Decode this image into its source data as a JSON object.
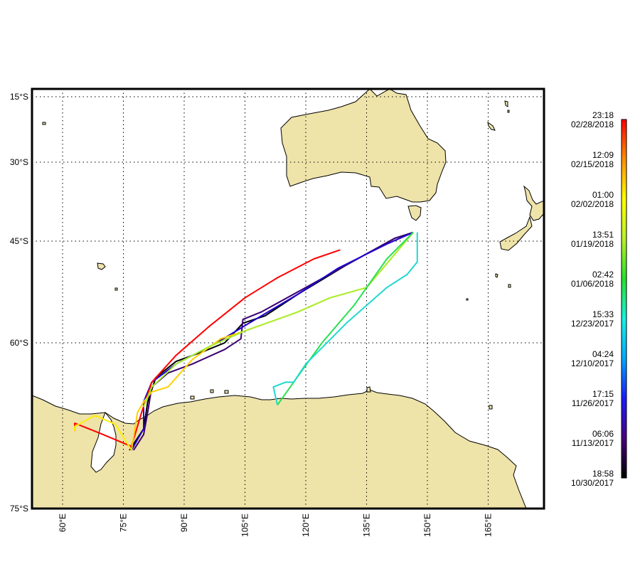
{
  "map": {
    "lat_labels": [
      "15°S",
      "30°S",
      "45°S",
      "60°S",
      "75°S"
    ],
    "lon_labels": [
      "60°E",
      "75°E",
      "90°E",
      "105°E",
      "120°E",
      "135°E",
      "150°E",
      "165°E"
    ],
    "land_color": "#EEE3A9",
    "coast_color": "#000000",
    "grid_style": "dotted"
  },
  "colorbar": {
    "ticks": [
      {
        "time": "23:18",
        "date": "02/28/2018"
      },
      {
        "time": "12:09",
        "date": "02/15/2018"
      },
      {
        "time": "01:00",
        "date": "02/02/2018"
      },
      {
        "time": "13:51",
        "date": "01/19/2018"
      },
      {
        "time": "02:42",
        "date": "01/06/2018"
      },
      {
        "time": "15:33",
        "date": "12/23/2017"
      },
      {
        "time": "04:24",
        "date": "12/10/2017"
      },
      {
        "time": "17:15",
        "date": "11/26/2017"
      },
      {
        "time": "06:06",
        "date": "11/13/2017"
      },
      {
        "time": "18:58",
        "date": "10/30/2017"
      }
    ],
    "colormap": [
      "#000000",
      "#4a0080",
      "#1b1bff",
      "#00a8ff",
      "#18f0e0",
      "#28e028",
      "#b8f028",
      "#ffff00",
      "#ff9000",
      "#ff0000"
    ]
  },
  "tracks": [
    {
      "color": "#000000",
      "path": [
        [
          146.5,
          -43.5
        ],
        [
          142,
          -44.5
        ],
        [
          130,
          -49
        ],
        [
          118,
          -53.5
        ],
        [
          110,
          -56.5
        ],
        [
          104.5,
          -57.5
        ],
        [
          100,
          -60
        ],
        [
          95,
          -61
        ],
        [
          88,
          -62.2
        ],
        [
          83,
          -64
        ],
        [
          81,
          -66.5
        ],
        [
          80,
          -69
        ],
        [
          76.5,
          -70.8
        ]
      ]
    },
    {
      "color": "#3a0070",
      "path": [
        [
          146.5,
          -43.5
        ],
        [
          142,
          -44.5
        ],
        [
          130,
          -49
        ],
        [
          120,
          -52.5
        ],
        [
          109,
          -56
        ],
        [
          104.5,
          -57
        ],
        [
          104,
          -59.5
        ],
        [
          100,
          -60.8
        ],
        [
          92,
          -62.5
        ],
        [
          86,
          -63.5
        ],
        [
          82,
          -65
        ],
        [
          81,
          -67.5
        ],
        [
          80,
          -69.5
        ],
        [
          77.5,
          -70.8
        ]
      ]
    },
    {
      "color": "#2000d0",
      "path": [
        [
          146.5,
          -43.5
        ],
        [
          140,
          -45.5
        ],
        [
          128,
          -49.5
        ],
        [
          118,
          -53.5
        ],
        [
          106,
          -57.5
        ],
        [
          98,
          -60
        ],
        [
          88,
          -62.5
        ],
        [
          82,
          -64.5
        ],
        [
          80,
          -66.5
        ],
        [
          80,
          -69
        ],
        [
          77,
          -70.8
        ]
      ]
    },
    {
      "color": "#ff0000",
      "path": [
        [
          128.5,
          -46.5
        ],
        [
          122,
          -48
        ],
        [
          113,
          -51
        ],
        [
          105,
          -54
        ],
        [
          96,
          -58
        ],
        [
          88,
          -61.5
        ],
        [
          82,
          -64.5
        ],
        [
          79.5,
          -67.5
        ],
        [
          77,
          -70.5
        ],
        [
          70,
          -69.5
        ],
        [
          63,
          -68.5
        ],
        [
          63,
          -69.2
        ]
      ]
    },
    {
      "color": "#ffee00",
      "path": [
        [
          77,
          -70.8
        ],
        [
          73,
          -68.6
        ],
        [
          68,
          -67.8
        ],
        [
          63,
          -68.8
        ],
        [
          63,
          -69.2
        ]
      ]
    },
    {
      "color": "#ffd000",
      "path": [
        [
          77,
          -70.8
        ],
        [
          78.5,
          -67.5
        ],
        [
          80,
          -66.5
        ],
        [
          82,
          -65.5
        ],
        [
          86,
          -65
        ],
        [
          92,
          -62
        ],
        [
          99,
          -59.5
        ],
        [
          105,
          -58.5
        ],
        [
          118,
          -56
        ],
        [
          126,
          -54
        ],
        [
          135,
          -52.5
        ],
        [
          146.5,
          -43.5
        ]
      ]
    },
    {
      "color": "#a8ee30",
      "path": [
        [
          146.5,
          -43.5
        ],
        [
          135,
          -52.5
        ],
        [
          126,
          -54
        ],
        [
          118,
          -56
        ],
        [
          105,
          -58.5
        ],
        [
          96,
          -60.5
        ],
        [
          88,
          -62.5
        ],
        [
          82,
          -65
        ],
        [
          80,
          -67
        ]
      ]
    },
    {
      "color": "#28e050",
      "path": [
        [
          146.5,
          -43.5
        ],
        [
          140,
          -48
        ],
        [
          132,
          -55
        ],
        [
          124,
          -60
        ],
        [
          117,
          -64.5
        ],
        [
          113,
          -66.8
        ]
      ]
    },
    {
      "color": "#20d8d0",
      "path": [
        [
          113,
          -66.8
        ],
        [
          112,
          -65
        ],
        [
          115,
          -64.5
        ],
        [
          117,
          -64.5
        ],
        [
          120,
          -62.5
        ],
        [
          130,
          -57.5
        ],
        [
          140,
          -52.5
        ],
        [
          145,
          -50.5
        ],
        [
          147.5,
          -48.5
        ],
        [
          147.5,
          -43.5
        ]
      ]
    }
  ]
}
